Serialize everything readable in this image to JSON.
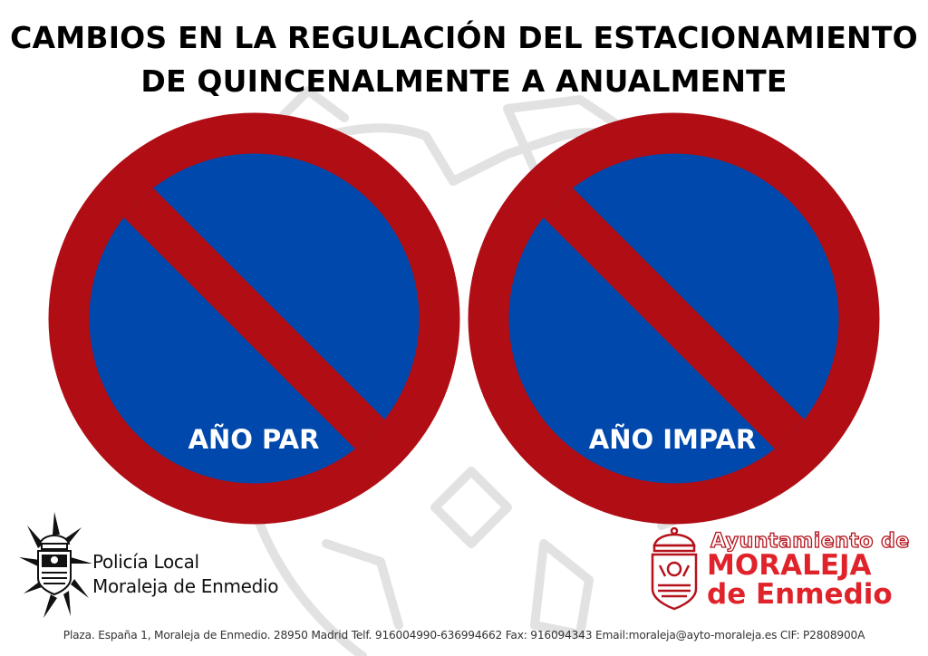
{
  "title": {
    "line1": "CAMBIOS EN LA REGULACIÓN DEL ESTACIONAMIENTO",
    "line2": "DE QUINCENALMENTE A ANUALMENTE"
  },
  "signs": [
    {
      "label": "AÑO PAR"
    },
    {
      "label": "AÑO IMPAR"
    }
  ],
  "colors": {
    "sign_red": "#b00d15",
    "sign_blue": "#0048ab",
    "brand_red": "#e0232b"
  },
  "police": {
    "line1": "Policía Local",
    "line2": "Moraleja de Enmedio"
  },
  "ayuntamiento": {
    "prefix": "Ayuntamiento de",
    "name_line1": "MORALEJA",
    "name_line2": "de Enmedio"
  },
  "footer": {
    "text": "Plaza. España 1, Moraleja de Enmedio. 28950 Madrid Telf. 916004990-636994662 Fax: 916094343 Email:moraleja@ayto-moraleja.es CIF: P2808900A"
  }
}
